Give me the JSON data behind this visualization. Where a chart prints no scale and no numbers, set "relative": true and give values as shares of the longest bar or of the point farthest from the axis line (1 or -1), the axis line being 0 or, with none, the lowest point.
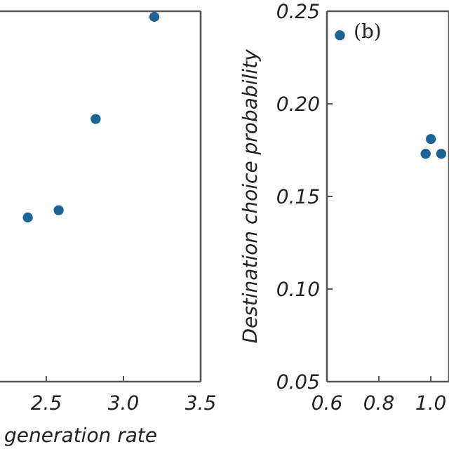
{
  "chart_data": [
    {
      "type": "scatter",
      "relative": true,
      "xlabel": "generation rate",
      "x": [
        2.38,
        2.58,
        2.82,
        3.2
      ],
      "series": [
        {
          "color": "#1a6496",
          "values": [
            0.45,
            0.47,
            0.72,
            1
          ]
        }
      ],
      "xlim": [
        2.2,
        3.5
      ],
      "xticks": [
        2.5,
        {
          "value": 3,
          "label": "3.0"
        },
        3.5
      ],
      "marker": "circle"
    },
    {
      "type": "scatter",
      "ylabel": "Destination choice probability",
      "annotations": [
        "(b)"
      ],
      "x": [
        0.65,
        0.98,
        1.0,
        1.04
      ],
      "series": [
        {
          "color": "#1a6496",
          "values": [
            0.237,
            0.173,
            0.181,
            0.173
          ]
        }
      ],
      "xlim": [
        0.6,
        1.07
      ],
      "ylim": [
        0.05,
        0.25
      ],
      "xticks": [
        0.6,
        0.8,
        {
          "value": 1,
          "label": "1.0"
        }
      ],
      "yticks": [
        0.05,
        {
          "value": 0.1,
          "label": "0.10"
        },
        0.15,
        {
          "value": 0.2,
          "label": "0.20"
        },
        0.25
      ],
      "marker": "circle"
    }
  ]
}
